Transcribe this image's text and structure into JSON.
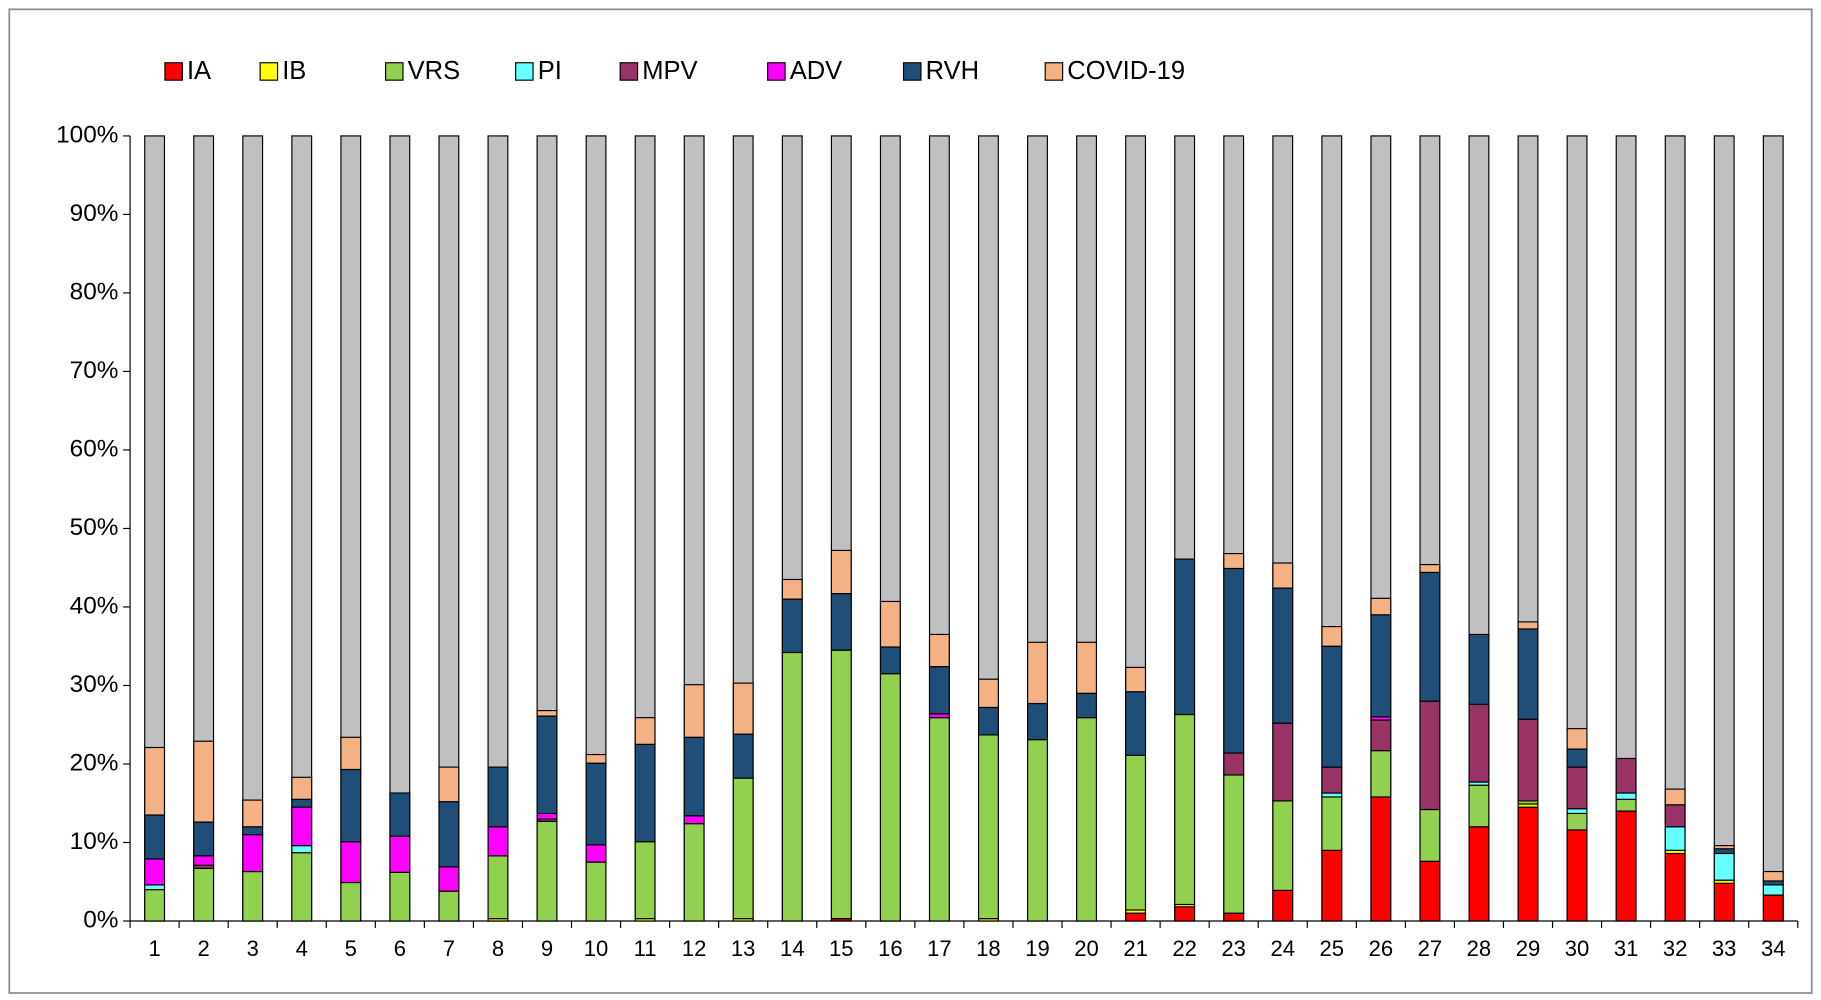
{
  "chart_data": {
    "type": "stacked_bar",
    "categories": [
      "1",
      "2",
      "3",
      "4",
      "5",
      "6",
      "7",
      "8",
      "9",
      "10",
      "11",
      "12",
      "13",
      "14",
      "15",
      "16",
      "17",
      "18",
      "19",
      "20",
      "21",
      "22",
      "23",
      "24",
      "25",
      "26",
      "27",
      "28",
      "29",
      "30",
      "31",
      "32",
      "33",
      "34"
    ],
    "series": [
      {
        "name": "IA",
        "color": "#ff0000",
        "values": [
          0,
          0,
          0,
          0,
          0,
          0,
          0,
          0,
          0,
          0,
          0,
          0,
          0,
          0,
          0.3,
          0,
          0,
          0,
          0,
          0,
          1,
          1.8,
          1,
          3.9,
          9,
          15.8,
          7.6,
          12,
          14.5,
          11.6,
          14,
          8.6,
          4.8,
          3.3
        ]
      },
      {
        "name": "IB",
        "color": "#ffff00",
        "values": [
          0,
          0,
          0,
          0,
          0,
          0,
          0,
          0.3,
          0,
          0,
          0.3,
          0,
          0.3,
          0,
          0,
          0,
          0,
          0.3,
          0,
          0,
          0.4,
          0.3,
          0,
          0,
          0,
          0,
          0,
          0,
          0.4,
          0,
          0,
          0.4,
          0.4,
          0
        ]
      },
      {
        "name": "VRS",
        "color": "#92d050",
        "values": [
          4,
          6.7,
          6.3,
          8.7,
          4.9,
          6.2,
          3.8,
          8,
          12.7,
          7.5,
          9.8,
          12.4,
          17.9,
          34.2,
          34.2,
          31.5,
          25.9,
          23.4,
          23.1,
          25.9,
          19.7,
          24.2,
          17.6,
          11.4,
          6.8,
          5.9,
          6.6,
          5.3,
          0.4,
          2.1,
          1.5,
          0,
          0,
          0
        ]
      },
      {
        "name": "PI",
        "color": "#66ffff",
        "values": [
          0.6,
          0,
          0,
          0.9,
          0,
          0,
          0,
          0,
          0,
          0,
          0,
          0,
          0,
          0,
          0,
          0,
          0,
          0,
          0,
          0,
          0,
          0,
          0,
          0,
          0.5,
          0,
          0,
          0.4,
          0,
          0.6,
          0.8,
          3,
          3.4,
          1.3
        ]
      },
      {
        "name": "MPV",
        "color": "#993366",
        "values": [
          0,
          0.4,
          0,
          0,
          0,
          0,
          0,
          0,
          0.3,
          0,
          0,
          0,
          0,
          0,
          0,
          0,
          0,
          0,
          0,
          0,
          0,
          0,
          2.8,
          9.9,
          3.3,
          3.9,
          13.8,
          9.9,
          10.4,
          5.3,
          4.4,
          2.8,
          0,
          0
        ]
      },
      {
        "name": "ADV",
        "color": "#ff00ff",
        "values": [
          3.3,
          1.2,
          4.7,
          4.9,
          5.2,
          4.6,
          3.1,
          3.7,
          0.7,
          2.2,
          0,
          1,
          0,
          0,
          0,
          0,
          0.5,
          0,
          0,
          0,
          0,
          0,
          0,
          0,
          0,
          0.4,
          0,
          0,
          0,
          0,
          0,
          0,
          0,
          0
        ]
      },
      {
        "name": "RVH",
        "color": "#1f4e79",
        "values": [
          5.6,
          4.3,
          1,
          1,
          9.2,
          5.5,
          8.3,
          7.6,
          12.4,
          10.4,
          12.4,
          10,
          5.6,
          6.8,
          7.2,
          3.4,
          6,
          3.5,
          4.6,
          3.1,
          8.1,
          19.8,
          23.5,
          17.2,
          15.4,
          13,
          16.4,
          8.9,
          11.5,
          2.3,
          0,
          0,
          0.6,
          0.5
        ]
      },
      {
        "name": "COVID-19",
        "color": "#f4b183",
        "values": [
          8.6,
          10.3,
          3.4,
          2.8,
          4.1,
          0,
          4.4,
          0,
          0.7,
          1.1,
          3.4,
          6.7,
          6.5,
          2.5,
          5.5,
          5.8,
          4.1,
          3.6,
          7.8,
          6.5,
          3.1,
          0,
          1.9,
          3.2,
          2.5,
          2.1,
          1,
          0,
          0.9,
          2.6,
          0,
          2,
          0.4,
          1.2
        ]
      }
    ],
    "ylim": [
      0,
      100
    ],
    "yticks": [
      {
        "value": 0,
        "label": "0%"
      },
      {
        "value": 10,
        "label": "10%"
      },
      {
        "value": 20,
        "label": "20%"
      },
      {
        "value": 30,
        "label": "30%"
      },
      {
        "value": 40,
        "label": "40%"
      },
      {
        "value": 50,
        "label": "50%"
      },
      {
        "value": 60,
        "label": "60%"
      },
      {
        "value": 70,
        "label": "70%"
      },
      {
        "value": 80,
        "label": "80%"
      },
      {
        "value": 90,
        "label": "90%"
      },
      {
        "value": 100,
        "label": "100%"
      }
    ],
    "legend": "top"
  }
}
